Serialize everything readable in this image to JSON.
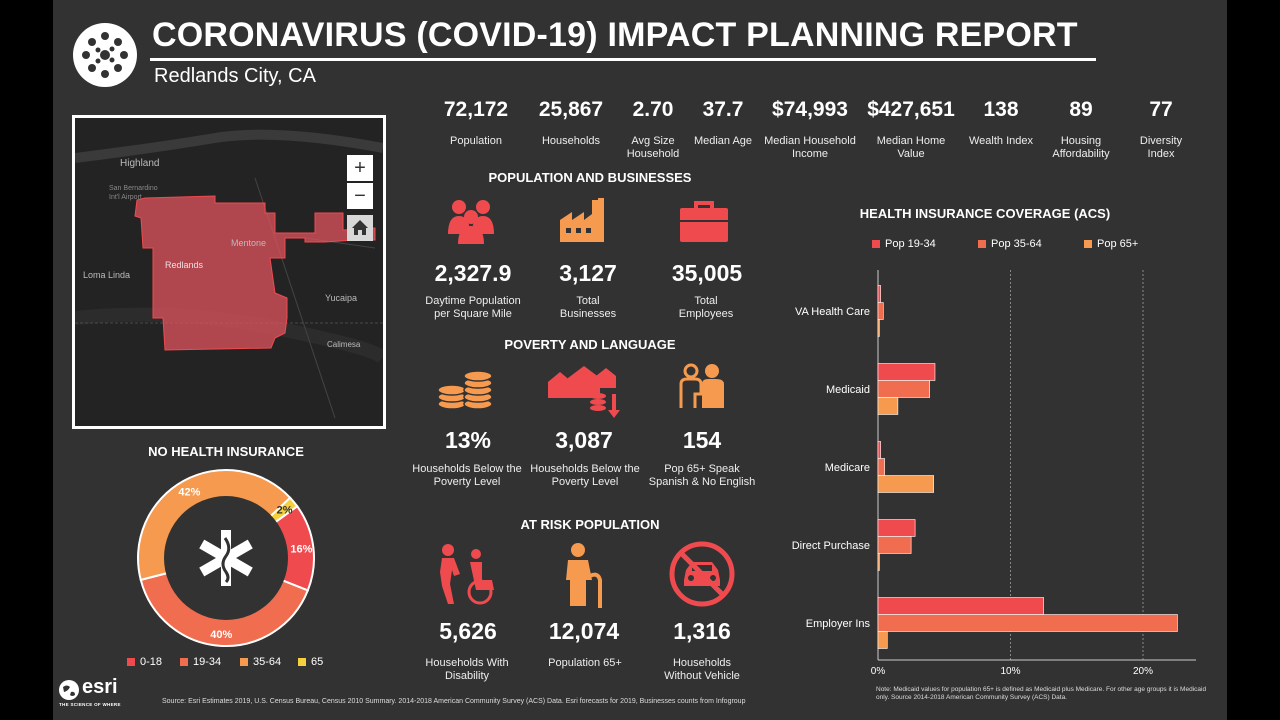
{
  "header": {
    "title": "CORONAVIRUS (COVID-19) IMPACT PLANNING REPORT",
    "subtitle": "Redlands City, CA"
  },
  "stats": [
    {
      "value": "72,172",
      "label": "Population"
    },
    {
      "value": "25,867",
      "label": "Households"
    },
    {
      "value": "2.70",
      "label": "Avg Size Household"
    },
    {
      "value": "37.7",
      "label": "Median Age"
    },
    {
      "value": "$74,993",
      "label": "Median Household Income"
    },
    {
      "value": "$427,651",
      "label": "Median Home Value"
    },
    {
      "value": "138",
      "label": "Wealth Index"
    },
    {
      "value": "89",
      "label": "Housing Affordability"
    },
    {
      "value": "77",
      "label": "Diversity Index"
    }
  ],
  "map": {
    "labels": [
      "Highland",
      "San Bernardino Int'l Airport",
      "Mentone",
      "Redlands",
      "Loma Linda",
      "Yucaipa",
      "Calimesa"
    ],
    "zoom_in": "+",
    "zoom_out": "−",
    "home_icon": "home-icon"
  },
  "population_businesses": {
    "heading": "POPULATION AND BUSINESSES",
    "items": [
      {
        "icon": "people-icon",
        "value": "2,327.9",
        "label": "Daytime Population per Square Mile"
      },
      {
        "icon": "factory-icon",
        "value": "3,127",
        "label": "Total Businesses"
      },
      {
        "icon": "briefcase-icon",
        "value": "35,005",
        "label": "Total Employees"
      }
    ]
  },
  "poverty_language": {
    "heading": "POVERTY AND LANGUAGE",
    "items": [
      {
        "icon": "coins-icon",
        "value": "13%",
        "label": "Households Below the Poverty Level"
      },
      {
        "icon": "houses-down-icon",
        "value": "3,087",
        "label": "Households Below the Poverty Level"
      },
      {
        "icon": "two-persons-icon",
        "value": "154",
        "label": "Pop 65+ Speak Spanish & No English"
      }
    ]
  },
  "at_risk": {
    "heading": "AT RISK POPULATION",
    "items": [
      {
        "icon": "wheelchair-icon",
        "value": "5,626",
        "label": "Households With Disability"
      },
      {
        "icon": "elderly-icon",
        "value": "12,074",
        "label": "Population 65+"
      },
      {
        "icon": "no-car-icon",
        "value": "1,316",
        "label": "Households Without Vehicle"
      }
    ]
  },
  "donut": {
    "heading": "NO HEALTH INSURANCE",
    "center_icon": "medical-star-icon",
    "slices": [
      {
        "name": "0-18",
        "value": 16,
        "label": "16%",
        "color": "#ef4b4f"
      },
      {
        "name": "19-34",
        "value": 40,
        "label": "40%",
        "color": "#f06d4f"
      },
      {
        "name": "35-64",
        "value": 42,
        "label": "42%",
        "color": "#f59a4e"
      },
      {
        "name": "65",
        "value": 2,
        "label": "2%",
        "color": "#f4d03f"
      }
    ]
  },
  "chart_data": {
    "type": "bar",
    "orientation": "horizontal",
    "title": "HEALTH INSURANCE COVERAGE (ACS)",
    "categories": [
      "VA Health Care",
      "Medicaid",
      "Medicare",
      "Direct Purchase",
      "Employer Ins"
    ],
    "series": [
      {
        "name": "Pop 19-34",
        "color": "#ef4b4f",
        "values": [
          0.2,
          4.3,
          0.2,
          2.8,
          12.5
        ]
      },
      {
        "name": "Pop 35-64",
        "color": "#f06d4f",
        "values": [
          0.4,
          3.9,
          0.5,
          2.5,
          22.6
        ]
      },
      {
        "name": "Pop 65+",
        "color": "#f59a4e",
        "values": [
          0.1,
          1.5,
          4.2,
          0.1,
          0.7
        ]
      }
    ],
    "x_ticks": [
      "0%",
      "10%",
      "20%"
    ],
    "xlim": [
      0,
      24
    ],
    "legend_position": "top",
    "grid": true
  },
  "chart_note": "Note: Medicaid values for population 65+ is defined as Medicaid plus Medicare. For other age groups it is Medicaid only. Source 2014-2018 American Community Survey (ACS) Data.",
  "footer": {
    "logo_text": "esri",
    "logo_tagline": "THE SCIENCE OF WHERE",
    "source": "Source: Esri Estimates 2019, U.S. Census Bureau, Census 2010 Summary. 2014-2018 American Community Survey (ACS) Data. Esri forecasts for 2019, Businesses counts from Infogroup"
  },
  "colors": {
    "red": "#ef4b4f",
    "orange": "#f59a4e",
    "coral": "#f06d4f",
    "yellow": "#f4d03f",
    "bg": "#323232"
  }
}
